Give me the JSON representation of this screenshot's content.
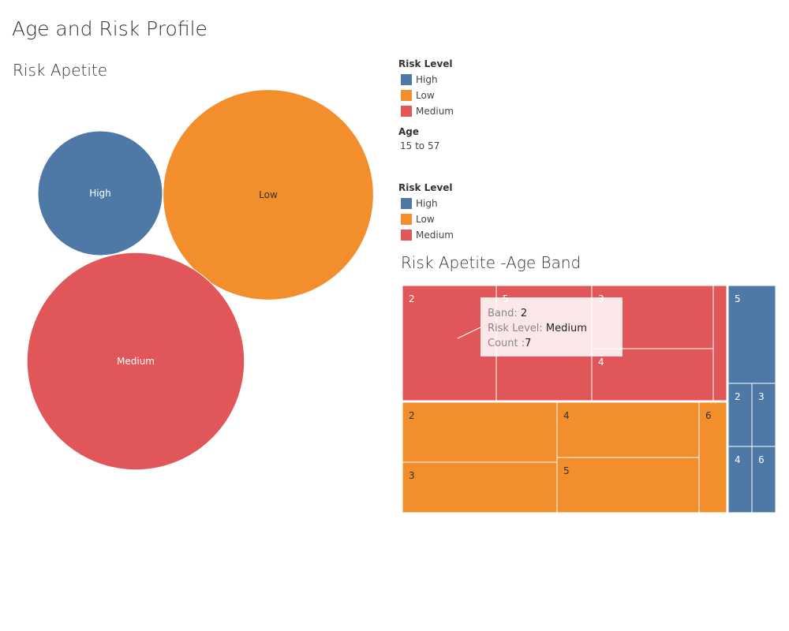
{
  "dashboard_title": "Age and Risk Profile",
  "colors": {
    "High": "#4e79a7",
    "Low": "#f28e2b",
    "Medium": "#e15759"
  },
  "legends": [
    {
      "title": "Risk Level",
      "items": [
        "High",
        "Low",
        "Medium"
      ]
    },
    {
      "title": "Risk Level",
      "items": [
        "High",
        "Low",
        "Medium"
      ]
    }
  ],
  "age_filter": {
    "title": "Age",
    "value": "15 to 57"
  },
  "tooltip": {
    "band_label": "Band:",
    "band_value": "2",
    "risk_label": "Risk Level:",
    "risk_value": "Medium",
    "count_label": "Count :",
    "count_value": "7"
  },
  "chart_data": [
    {
      "type": "bubble",
      "title": "Risk Apetite",
      "labels": [
        "High",
        "Low",
        "Medium"
      ],
      "relative_size": [
        1.0,
        2.85,
        3.04
      ]
    },
    {
      "type": "treemap",
      "title": "Risk Apetite -Age Band",
      "groups": [
        {
          "risk_level": "Medium",
          "bands": [
            "2",
            "5",
            "3",
            "4",
            ""
          ]
        },
        {
          "risk_level": "Low",
          "bands": [
            "2",
            "3",
            "4",
            "5",
            "6"
          ]
        },
        {
          "risk_level": "High",
          "bands": [
            "5",
            "2",
            "3",
            "4",
            "6"
          ]
        }
      ]
    }
  ]
}
